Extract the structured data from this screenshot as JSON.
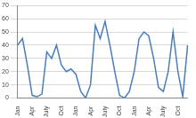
{
  "chart_data": {
    "type": "line",
    "categories": [
      "Jan",
      null,
      null,
      "Apr",
      null,
      null,
      "July",
      null,
      null,
      "Oct",
      null,
      null,
      "Jan",
      null,
      null,
      "Apr",
      null,
      null,
      "July",
      null,
      null,
      "Oct",
      null,
      null,
      "Jan",
      null,
      null,
      "Apr",
      null,
      null,
      "July",
      null,
      null,
      "Oct",
      null,
      null
    ],
    "values": [
      40,
      45,
      25,
      2,
      1,
      3,
      35,
      30,
      40,
      25,
      20,
      22,
      18,
      5,
      0,
      10,
      55,
      45,
      58,
      40,
      20,
      2,
      0,
      5,
      20,
      45,
      50,
      47,
      30,
      8,
      5,
      20,
      50,
      20,
      1,
      40
    ],
    "color": "#4a7ebb",
    "ylim": [
      0,
      70
    ],
    "yticks": [
      0,
      10,
      20,
      30,
      40,
      50,
      60,
      70
    ],
    "grid": true
  }
}
